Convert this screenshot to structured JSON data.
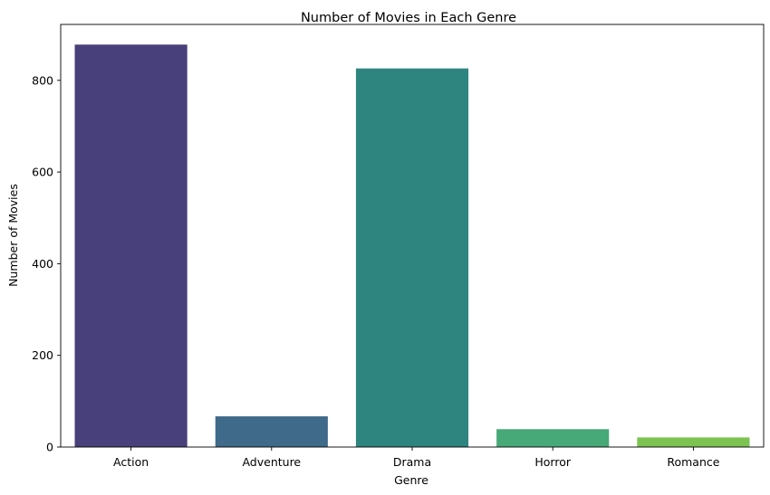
{
  "chart_data": {
    "type": "bar",
    "title": "Number of Movies in Each Genre",
    "xlabel": "Genre",
    "ylabel": "Number of Movies",
    "categories": [
      "Action",
      "Adventure",
      "Drama",
      "Horror",
      "Romance"
    ],
    "values": [
      878,
      67,
      826,
      39,
      21
    ],
    "colors": [
      "#48407a",
      "#3f6a8a",
      "#2e8580",
      "#48a978",
      "#7dc352"
    ],
    "ylim": [
      0,
      922
    ],
    "yticks": [
      0,
      200,
      400,
      600,
      800
    ],
    "grid": false,
    "legend": "none"
  }
}
